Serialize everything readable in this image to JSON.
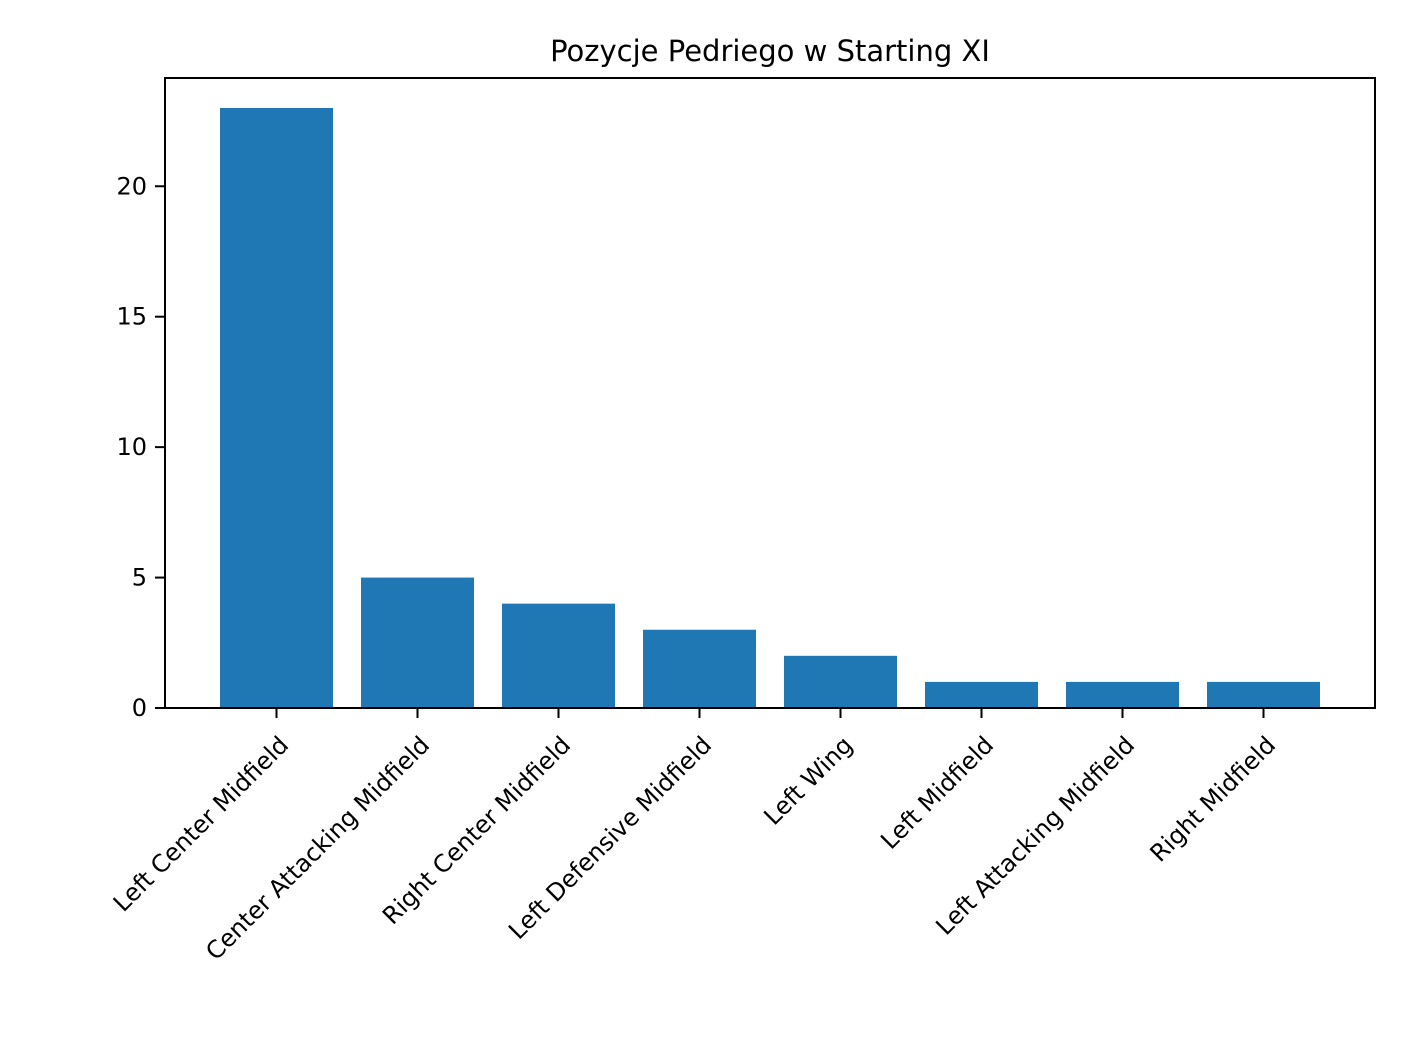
{
  "chart_data": {
    "type": "bar",
    "title": "Pozycje Pedriego w Starting XI",
    "xlabel": "",
    "ylabel": "",
    "categories": [
      "Left Center Midfield",
      "Center Attacking Midfield",
      "Right Center Midfield",
      "Left Defensive Midfield",
      "Left Wing",
      "Left Midfield",
      "Left Attacking Midfield",
      "Right Midfield"
    ],
    "values": [
      23,
      5,
      4,
      3,
      2,
      1,
      1,
      1
    ],
    "ylim": [
      0,
      24.15
    ],
    "yticks": [
      0,
      5,
      10,
      15,
      20
    ],
    "bar_color": "#1f77b4",
    "grid": false,
    "legend": "none",
    "xtick_rotation": "45 degrees, right-aligned"
  }
}
